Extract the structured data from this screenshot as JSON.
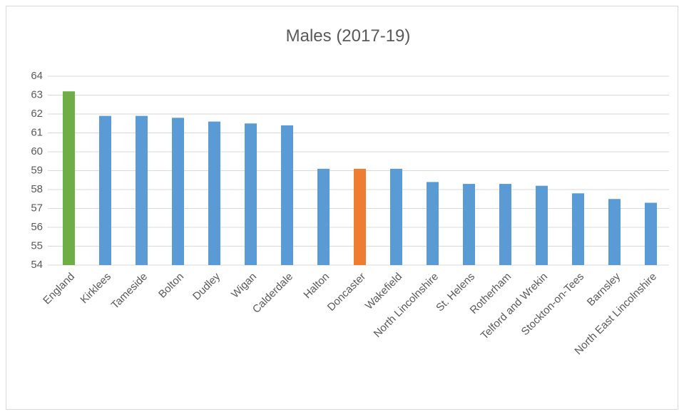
{
  "chart_data": {
    "type": "bar",
    "title": "Males (2017-19)",
    "categories": [
      "England",
      "Kirklees",
      "Tameside",
      "Bolton",
      "Dudley",
      "Wigan",
      "Calderdale",
      "Halton",
      "Doncaster",
      "Wakefield",
      "North Lincolnshire",
      "St. Helens",
      "Rotherham",
      "Telford and Wrekin",
      "Stockton-on-Tees",
      "Barnsley",
      "North East Lincolnshire"
    ],
    "values": [
      63.2,
      61.9,
      61.9,
      61.8,
      61.6,
      61.5,
      61.4,
      59.1,
      59.1,
      59.1,
      58.4,
      58.3,
      58.3,
      58.2,
      57.8,
      57.5,
      57.3
    ],
    "colors": [
      "#70ad47",
      "#5b9bd5",
      "#5b9bd5",
      "#5b9bd5",
      "#5b9bd5",
      "#5b9bd5",
      "#5b9bd5",
      "#5b9bd5",
      "#ed7d31",
      "#5b9bd5",
      "#5b9bd5",
      "#5b9bd5",
      "#5b9bd5",
      "#5b9bd5",
      "#5b9bd5",
      "#5b9bd5",
      "#5b9bd5"
    ],
    "ylim": [
      54,
      64
    ],
    "yticks": [
      54,
      55,
      56,
      57,
      58,
      59,
      60,
      61,
      62,
      63,
      64
    ],
    "grid": true
  }
}
